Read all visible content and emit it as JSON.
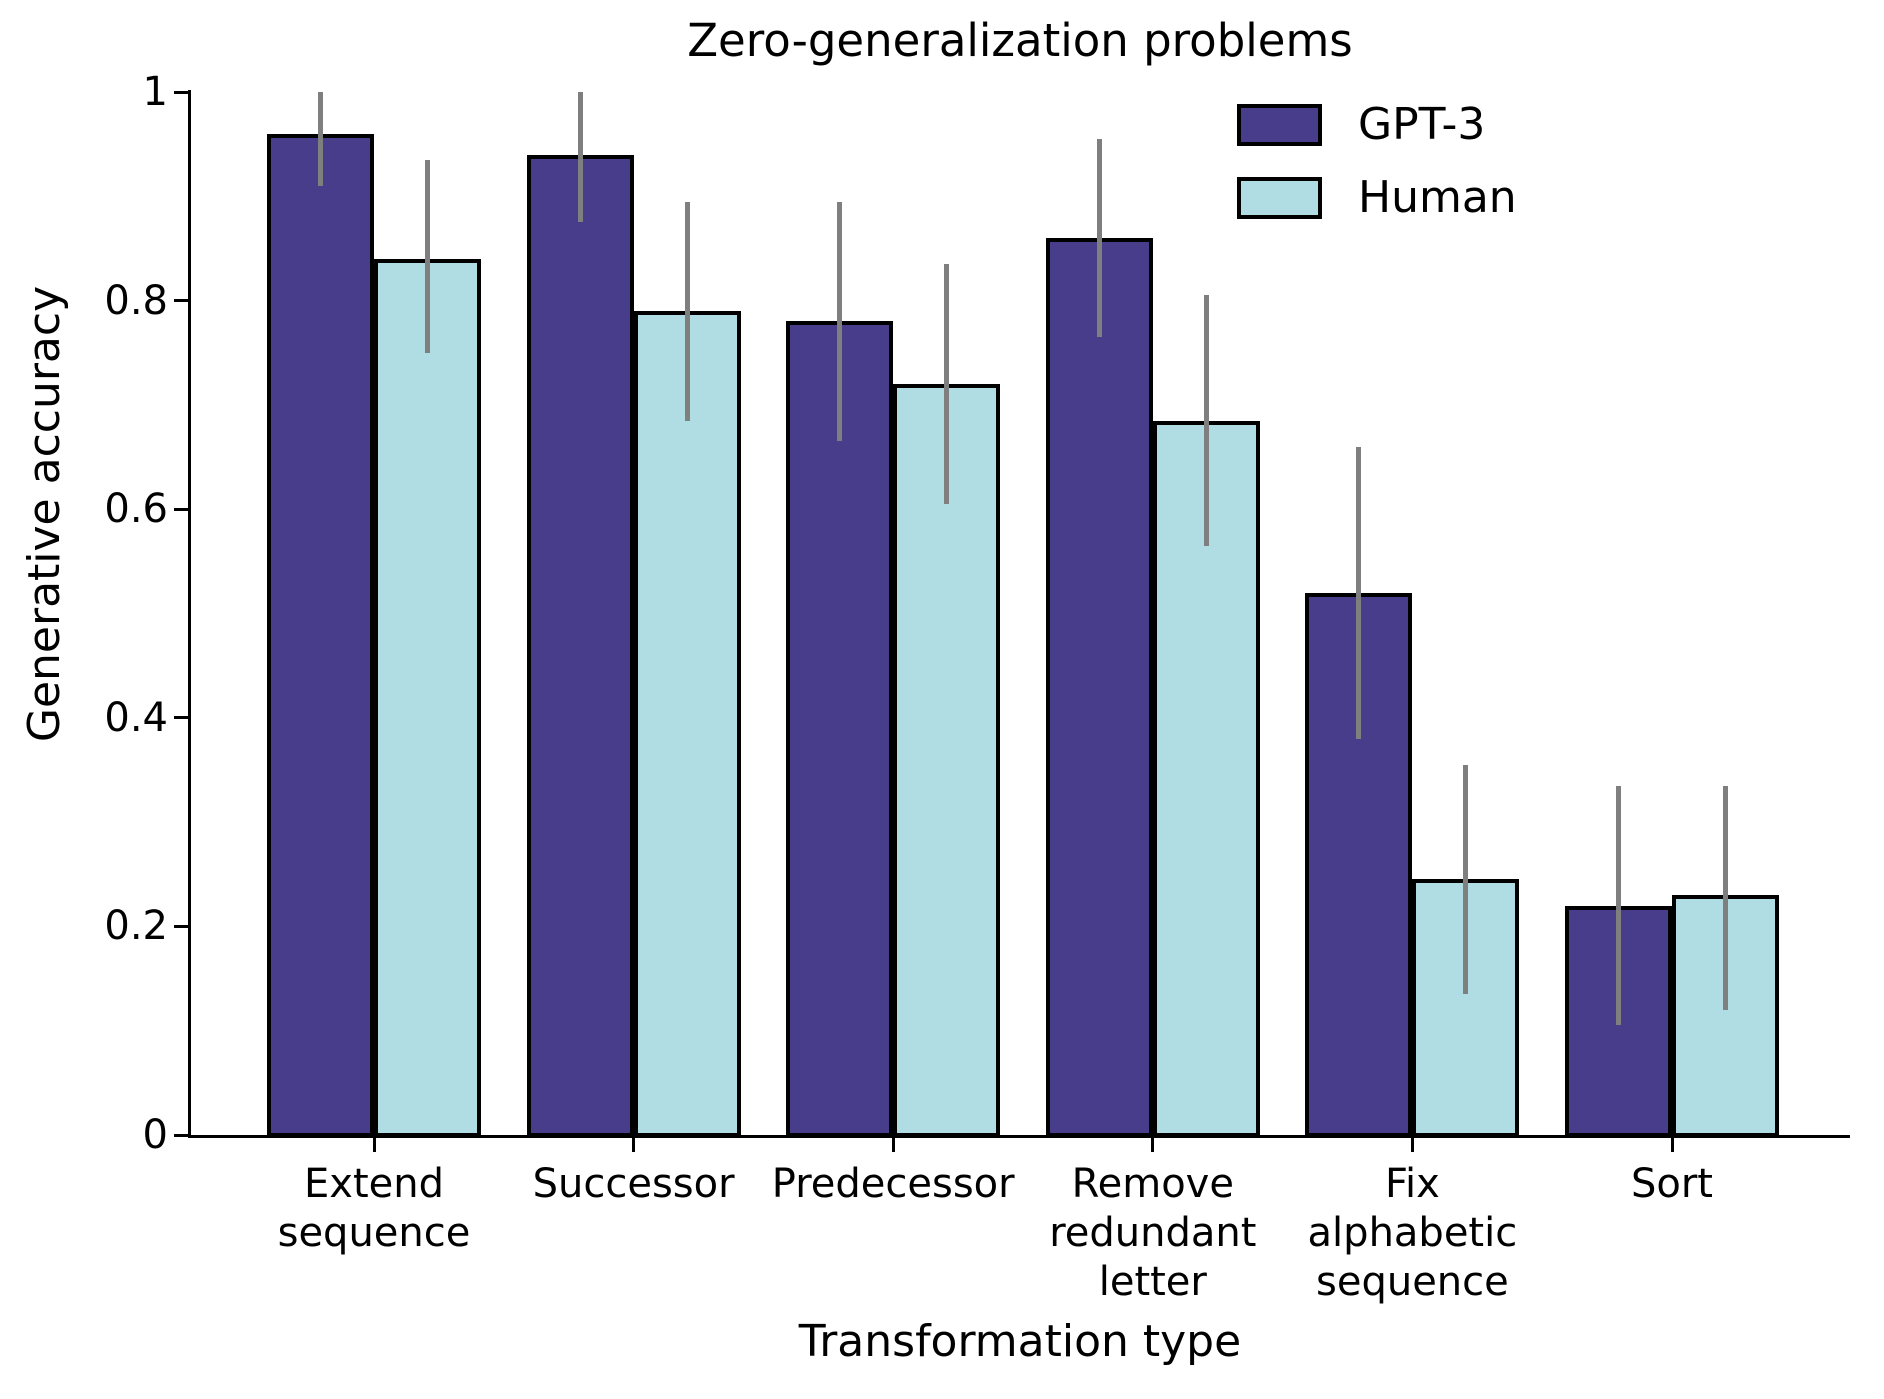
{
  "figure": {
    "title": "Zero-generalization problems",
    "xlabel": "Transformation type",
    "ylabel": "Generative accuracy"
  },
  "legend": {
    "items": [
      {
        "label": "GPT-3",
        "color": "#473d8b"
      },
      {
        "label": "Human",
        "color": "#b0dde4"
      }
    ]
  },
  "chart_data": {
    "type": "bar",
    "title": "Zero-generalization problems",
    "xlabel": "Transformation type",
    "ylabel": "Generative accuracy",
    "ylim": [
      0,
      1
    ],
    "yticks": [
      0,
      0.2,
      0.4,
      0.6,
      0.8,
      1
    ],
    "ytick_labels": [
      "0",
      "0.2",
      "0.4",
      "0.6",
      "0.8",
      "1"
    ],
    "grid": false,
    "legend_position": "upper-right-inside",
    "categories": [
      "Extend sequence",
      "Successor",
      "Predecessor",
      "Remove redundant letter",
      "Fix alphabetic sequence",
      "Sort"
    ],
    "category_lines": [
      [
        "Extend",
        "sequence"
      ],
      [
        "Successor"
      ],
      [
        "Predecessor"
      ],
      [
        "Remove",
        "redundant",
        "letter"
      ],
      [
        "Fix",
        "alphabetic",
        "sequence"
      ],
      [
        "Sort"
      ]
    ],
    "series": [
      {
        "name": "GPT-3",
        "color": "#473d8b",
        "values": [
          0.96,
          0.94,
          0.78,
          0.86,
          0.52,
          0.22
        ],
        "error_low": [
          0.91,
          0.875,
          0.665,
          0.765,
          0.38,
          0.105
        ],
        "error_high": [
          1.0,
          1.0,
          0.895,
          0.955,
          0.66,
          0.335
        ]
      },
      {
        "name": "Human",
        "color": "#b0dde4",
        "values": [
          0.84,
          0.79,
          0.72,
          0.685,
          0.245,
          0.23
        ],
        "error_low": [
          0.75,
          0.685,
          0.605,
          0.565,
          0.135,
          0.12
        ],
        "error_high": [
          0.935,
          0.895,
          0.835,
          0.805,
          0.355,
          0.335
        ]
      }
    ],
    "colors": {
      "error_bar": "#7f7f7f",
      "bar_edge": "#000000",
      "text": "#000000",
      "background": "#ffffff"
    }
  }
}
